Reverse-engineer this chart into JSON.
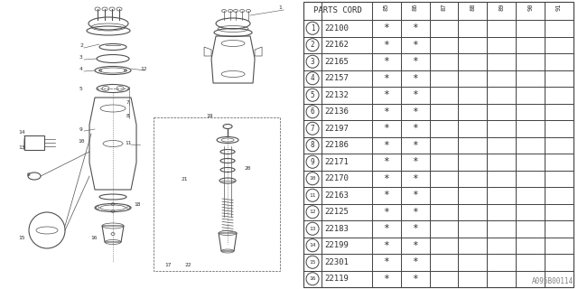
{
  "watermark": "A095B00114",
  "table_header": "PARTS CORD",
  "col_headers": [
    "85",
    "86",
    "87",
    "88",
    "89",
    "90",
    "91"
  ],
  "parts": [
    {
      "num": 1,
      "code": "22100"
    },
    {
      "num": 2,
      "code": "22162"
    },
    {
      "num": 3,
      "code": "22165"
    },
    {
      "num": 4,
      "code": "22157"
    },
    {
      "num": 5,
      "code": "22132"
    },
    {
      "num": 6,
      "code": "22136"
    },
    {
      "num": 7,
      "code": "22197"
    },
    {
      "num": 8,
      "code": "22186"
    },
    {
      "num": 9,
      "code": "22171"
    },
    {
      "num": 10,
      "code": "22170"
    },
    {
      "num": 11,
      "code": "22163"
    },
    {
      "num": 12,
      "code": "22125"
    },
    {
      "num": 13,
      "code": "22183"
    },
    {
      "num": 14,
      "code": "22199"
    },
    {
      "num": 15,
      "code": "22301"
    },
    {
      "num": 16,
      "code": "22119"
    }
  ],
  "star_cols": [
    0,
    1
  ],
  "bg_color": "#ffffff",
  "line_color": "#404040",
  "text_color": "#303030",
  "diagram_color": "#505050"
}
